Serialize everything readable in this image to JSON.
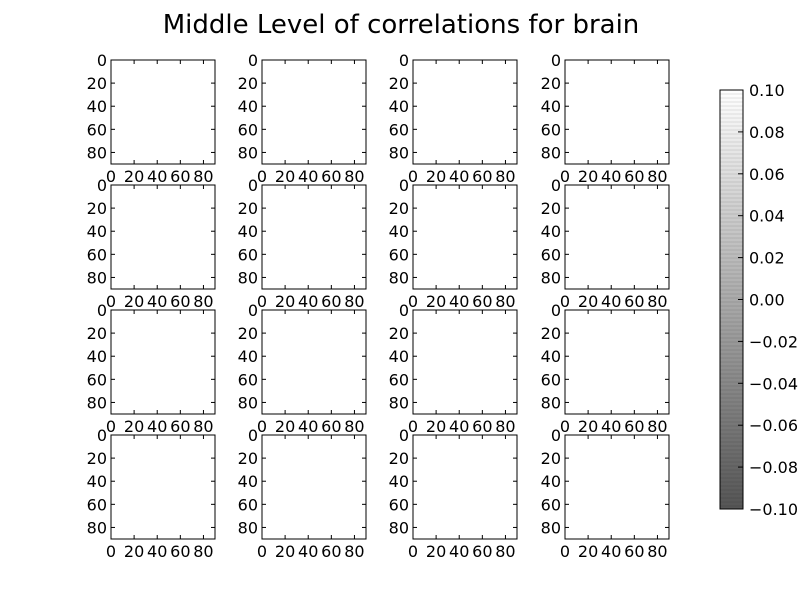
{
  "chart_data": {
    "type": "heatmap",
    "title": "Middle Level of correlations for brain",
    "grid": false,
    "layout": {
      "rows": 4,
      "cols": 4
    },
    "panel_axes": {
      "x_ticks": [
        0,
        20,
        40,
        60,
        80
      ],
      "y_ticks": [
        0,
        20,
        40,
        60,
        80
      ],
      "x_tick_labels": [
        "0",
        "20",
        "40",
        "60",
        "80"
      ],
      "y_tick_labels": [
        "0",
        "20",
        "40",
        "60",
        "80"
      ],
      "xlim": [
        0,
        90
      ],
      "ylim": [
        90,
        0
      ],
      "origin": "upper"
    },
    "panel_value": 0.1,
    "colorbar": {
      "vmin": -0.1,
      "vmax": 0.1,
      "ticks": [
        0.1,
        0.08,
        0.06,
        0.04,
        0.02,
        0.0,
        -0.02,
        -0.04,
        -0.06,
        -0.08,
        -0.1
      ],
      "tick_labels": [
        "0.10",
        "0.08",
        "0.06",
        "0.04",
        "0.02",
        "0.00",
        "−0.02",
        "−0.04",
        "−0.06",
        "−0.08",
        "−0.10"
      ],
      "colormap": "gray",
      "color_low": "#555555",
      "color_high": "#ffffff",
      "placement": "right"
    }
  }
}
